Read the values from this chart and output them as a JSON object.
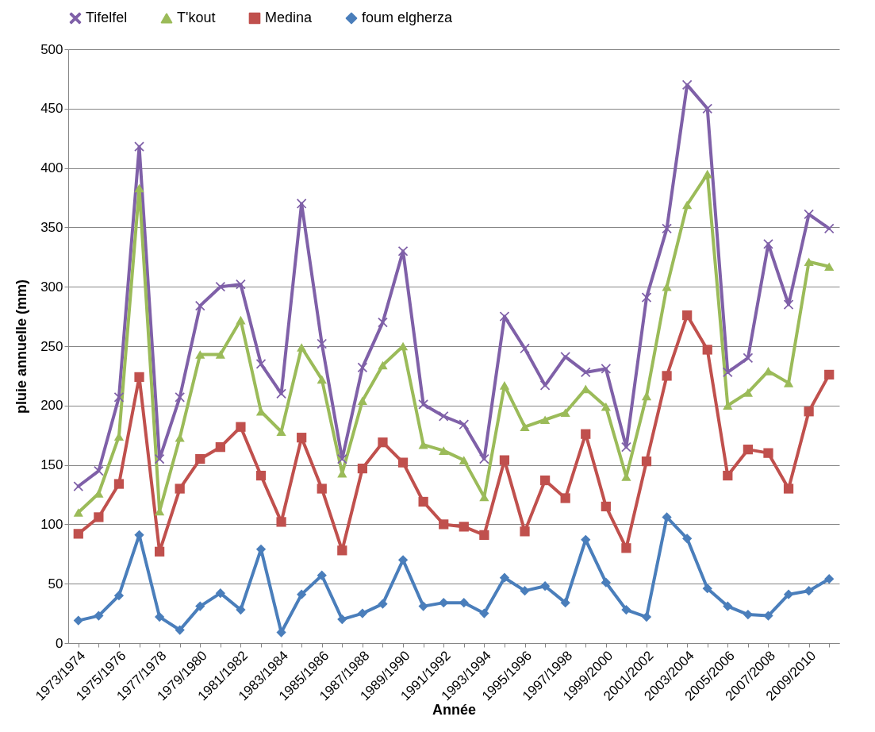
{
  "chart_data": {
    "type": "line",
    "xlabel": "Année",
    "ylabel": "pluie annuelle (mm)",
    "categories": [
      "1973/1974",
      null,
      "1975/1976",
      null,
      "1977/1978",
      null,
      "1979/1980",
      null,
      "1981/1982",
      null,
      "1983/1984",
      null,
      "1985/1986",
      null,
      "1987/1988",
      null,
      "1989/1990",
      null,
      "1991/1992",
      null,
      "1993/1994",
      null,
      "1995/1996",
      null,
      "1997/1998",
      null,
      "1999/2000",
      null,
      "2001/2002",
      null,
      "2003/2004",
      null,
      "2005/2006",
      null,
      "2007/2008",
      null,
      "2009/2010",
      null
    ],
    "series": [
      {
        "name": "Tifelfel",
        "color": "#7f60a8",
        "marker": "cross",
        "values": [
          132,
          145,
          207,
          418,
          155,
          207,
          284,
          300,
          302,
          235,
          210,
          370,
          252,
          155,
          232,
          270,
          330,
          201,
          191,
          184,
          155,
          275,
          248,
          217,
          241,
          228,
          231,
          165,
          291,
          349,
          470,
          450,
          228,
          240,
          336,
          285,
          361,
          349
        ]
      },
      {
        "name": "T'kout",
        "color": "#9bbb59",
        "marker": "triangle",
        "values": [
          110,
          126,
          174,
          383,
          111,
          173,
          243,
          243,
          272,
          195,
          178,
          249,
          222,
          143,
          204,
          234,
          250,
          167,
          162,
          154,
          123,
          217,
          182,
          188,
          194,
          214,
          199,
          140,
          208,
          300,
          369,
          395,
          200,
          211,
          229,
          219,
          321,
          317
        ]
      },
      {
        "name": "Medina",
        "color": "#c0504d",
        "marker": "square",
        "values": [
          92,
          106,
          134,
          224,
          77,
          130,
          155,
          165,
          182,
          141,
          102,
          173,
          130,
          78,
          147,
          169,
          152,
          119,
          100,
          98,
          91,
          154,
          94,
          137,
          122,
          176,
          115,
          80,
          153,
          225,
          276,
          247,
          141,
          163,
          160,
          130,
          195,
          226
        ]
      },
      {
        "name": "foum elgherza",
        "color": "#4a7ebb",
        "marker": "diamond",
        "values": [
          19,
          23,
          40,
          91,
          22,
          11,
          31,
          42,
          28,
          79,
          9,
          41,
          57,
          20,
          25,
          33,
          70,
          31,
          34,
          34,
          25,
          55,
          44,
          48,
          34,
          87,
          51,
          28,
          22,
          106,
          88,
          46,
          31,
          24,
          23,
          41,
          44,
          54
        ]
      }
    ],
    "ylim": [
      0,
      500
    ],
    "yticks": [
      0,
      50,
      100,
      150,
      200,
      250,
      300,
      350,
      400,
      450,
      500
    ],
    "grid": "y",
    "legend": "top",
    "line_style": "solid"
  }
}
